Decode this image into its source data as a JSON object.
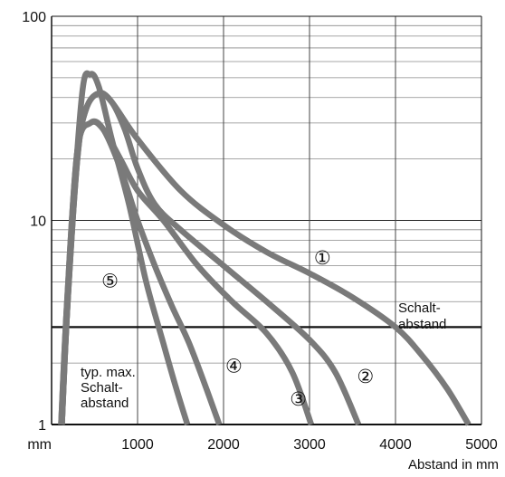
{
  "chart_data": {
    "type": "line",
    "xlabel": "Abstand in mm",
    "x_unit": "mm",
    "xlim": [
      0,
      5000
    ],
    "ylim": [
      1,
      100
    ],
    "y_scale": "log",
    "grid": true,
    "x_ticks": [
      {
        "value": 1000,
        "label": "1000"
      },
      {
        "value": 2000,
        "label": "2000"
      },
      {
        "value": 3000,
        "label": "3000"
      },
      {
        "value": 4000,
        "label": "4000"
      },
      {
        "value": 5000,
        "label": "5000"
      }
    ],
    "y_ticks": [
      {
        "value": 1,
        "label": "1"
      },
      {
        "value": 10,
        "label": "10"
      },
      {
        "value": 100,
        "label": "100"
      }
    ],
    "threshold": {
      "value": 3,
      "label_lines": [
        "Schalt-",
        "abstand"
      ]
    },
    "annotation_lines": [
      "typ. max.",
      "Schalt-",
      "abstand"
    ],
    "series": [
      {
        "name": "①",
        "points": [
          [
            120,
            1
          ],
          [
            180,
            3.5
          ],
          [
            300,
            20
          ],
          [
            400,
            35
          ],
          [
            550,
            42
          ],
          [
            700,
            38
          ],
          [
            1000,
            25
          ],
          [
            1500,
            14
          ],
          [
            2000,
            9.5
          ],
          [
            2500,
            7
          ],
          [
            3000,
            5.5
          ],
          [
            3500,
            4.2
          ],
          [
            4000,
            3
          ],
          [
            4300,
            2.2
          ],
          [
            4600,
            1.5
          ],
          [
            4850,
            1
          ]
        ]
      },
      {
        "name": "②",
        "points": [
          [
            120,
            1
          ],
          [
            180,
            3.5
          ],
          [
            300,
            20
          ],
          [
            400,
            35
          ],
          [
            550,
            42
          ],
          [
            700,
            38
          ],
          [
            850,
            28
          ],
          [
            1000,
            18
          ],
          [
            1200,
            12
          ],
          [
            1500,
            9
          ],
          [
            2000,
            6
          ],
          [
            2500,
            4
          ],
          [
            3000,
            2.6
          ],
          [
            3300,
            1.8
          ],
          [
            3570,
            1
          ]
        ]
      },
      {
        "name": "③",
        "points": [
          [
            110,
            1
          ],
          [
            180,
            4
          ],
          [
            300,
            22
          ],
          [
            450,
            30
          ],
          [
            600,
            28
          ],
          [
            800,
            20
          ],
          [
            1000,
            14
          ],
          [
            1300,
            10
          ],
          [
            1700,
            6
          ],
          [
            2100,
            4
          ],
          [
            2500,
            2.8
          ],
          [
            2800,
            1.8
          ],
          [
            3020,
            1
          ]
        ]
      },
      {
        "name": "④",
        "points": [
          [
            110,
            1
          ],
          [
            180,
            4
          ],
          [
            300,
            22
          ],
          [
            450,
            30
          ],
          [
            600,
            28
          ],
          [
            800,
            18
          ],
          [
            1000,
            10
          ],
          [
            1200,
            6
          ],
          [
            1400,
            3.8
          ],
          [
            1600,
            2.5
          ],
          [
            1800,
            1.5
          ],
          [
            1950,
            1
          ]
        ]
      },
      {
        "name": "⑤",
        "points": [
          [
            120,
            1
          ],
          [
            200,
            5
          ],
          [
            350,
            40
          ],
          [
            450,
            52
          ],
          [
            550,
            45
          ],
          [
            700,
            25
          ],
          [
            900,
            12
          ],
          [
            1100,
            5
          ],
          [
            1300,
            2.5
          ],
          [
            1450,
            1.5
          ],
          [
            1580,
            1
          ]
        ]
      }
    ],
    "series_color": "#7a7a7a"
  }
}
